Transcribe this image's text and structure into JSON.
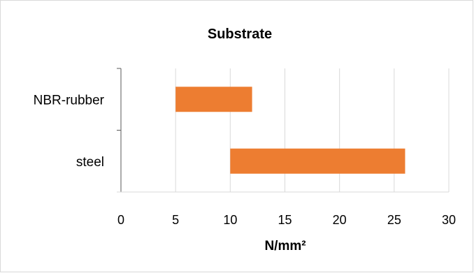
{
  "chart_data": {
    "type": "bar",
    "orientation": "horizontal",
    "stacked_floating": true,
    "title": "Substrate",
    "xlabel": "N/mm²",
    "ylabel": "",
    "xlim": [
      0,
      30
    ],
    "xticks": [
      0,
      5,
      10,
      15,
      20,
      25,
      30
    ],
    "categories": [
      "NBR-rubber",
      "steel"
    ],
    "series": [
      {
        "values": [
          [
            5,
            12
          ],
          [
            10,
            26
          ]
        ]
      }
    ],
    "grid": "vertical",
    "legend": "none",
    "colors": {
      "bar": "#ED7D31",
      "grid": "#D9D9D9",
      "axis": "#595959",
      "border": "#D9D9D9"
    }
  }
}
